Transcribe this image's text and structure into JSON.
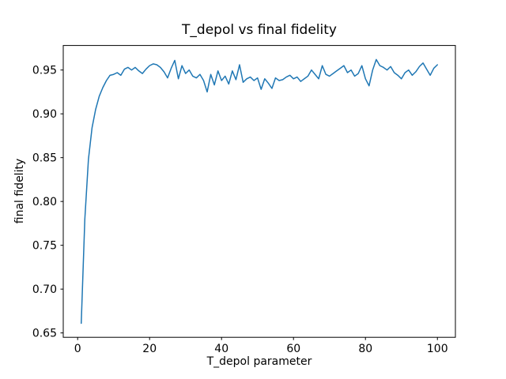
{
  "chart_data": {
    "type": "line",
    "title": "T_depol vs final fidelity",
    "xlabel": "T_depol parameter",
    "ylabel": "final fidelity",
    "grid": false,
    "legend": "none",
    "line_color": "#1f77b4",
    "xlim": [
      -4,
      105
    ],
    "ylim": [
      0.645,
      0.978
    ],
    "xticks": [
      0,
      20,
      40,
      60,
      80,
      100
    ],
    "xtick_labels": [
      "0",
      "20",
      "40",
      "60",
      "80",
      "100"
    ],
    "yticks": [
      0.65,
      0.7,
      0.75,
      0.8,
      0.85,
      0.9,
      0.95
    ],
    "ytick_labels": [
      "0.65",
      "0.70",
      "0.75",
      "0.80",
      "0.85",
      "0.90",
      "0.95"
    ],
    "series": [
      {
        "name": "final fidelity",
        "color": "#1f77b4",
        "x": [
          1,
          2,
          3,
          4,
          5,
          6,
          7,
          8,
          9,
          10,
          11,
          12,
          13,
          14,
          15,
          16,
          17,
          18,
          19,
          20,
          21,
          22,
          23,
          24,
          25,
          26,
          27,
          28,
          29,
          30,
          31,
          32,
          33,
          34,
          35,
          36,
          37,
          38,
          39,
          40,
          41,
          42,
          43,
          44,
          45,
          46,
          47,
          48,
          49,
          50,
          51,
          52,
          53,
          54,
          55,
          56,
          57,
          58,
          59,
          60,
          61,
          62,
          63,
          64,
          65,
          66,
          67,
          68,
          69,
          70,
          71,
          72,
          73,
          74,
          75,
          76,
          77,
          78,
          79,
          80,
          81,
          82,
          83,
          84,
          85,
          86,
          87,
          88,
          89,
          90,
          91,
          92,
          93,
          94,
          95,
          96,
          97,
          98,
          99,
          100
        ],
        "y": [
          0.661,
          0.78,
          0.848,
          0.884,
          0.905,
          0.92,
          0.93,
          0.938,
          0.944,
          0.945,
          0.947,
          0.944,
          0.951,
          0.953,
          0.95,
          0.953,
          0.949,
          0.946,
          0.951,
          0.955,
          0.957,
          0.956,
          0.953,
          0.948,
          0.941,
          0.952,
          0.961,
          0.94,
          0.955,
          0.946,
          0.95,
          0.943,
          0.941,
          0.945,
          0.938,
          0.925,
          0.945,
          0.933,
          0.949,
          0.938,
          0.943,
          0.934,
          0.949,
          0.939,
          0.956,
          0.936,
          0.94,
          0.942,
          0.938,
          0.941,
          0.928,
          0.94,
          0.935,
          0.929,
          0.941,
          0.938,
          0.939,
          0.942,
          0.944,
          0.94,
          0.942,
          0.937,
          0.94,
          0.943,
          0.95,
          0.945,
          0.94,
          0.955,
          0.945,
          0.943,
          0.946,
          0.949,
          0.952,
          0.955,
          0.947,
          0.95,
          0.943,
          0.946,
          0.955,
          0.94,
          0.932,
          0.95,
          0.962,
          0.955,
          0.953,
          0.95,
          0.954,
          0.947,
          0.944,
          0.94,
          0.947,
          0.95,
          0.944,
          0.948,
          0.954,
          0.958,
          0.951,
          0.944,
          0.952,
          0.956
        ]
      }
    ]
  }
}
